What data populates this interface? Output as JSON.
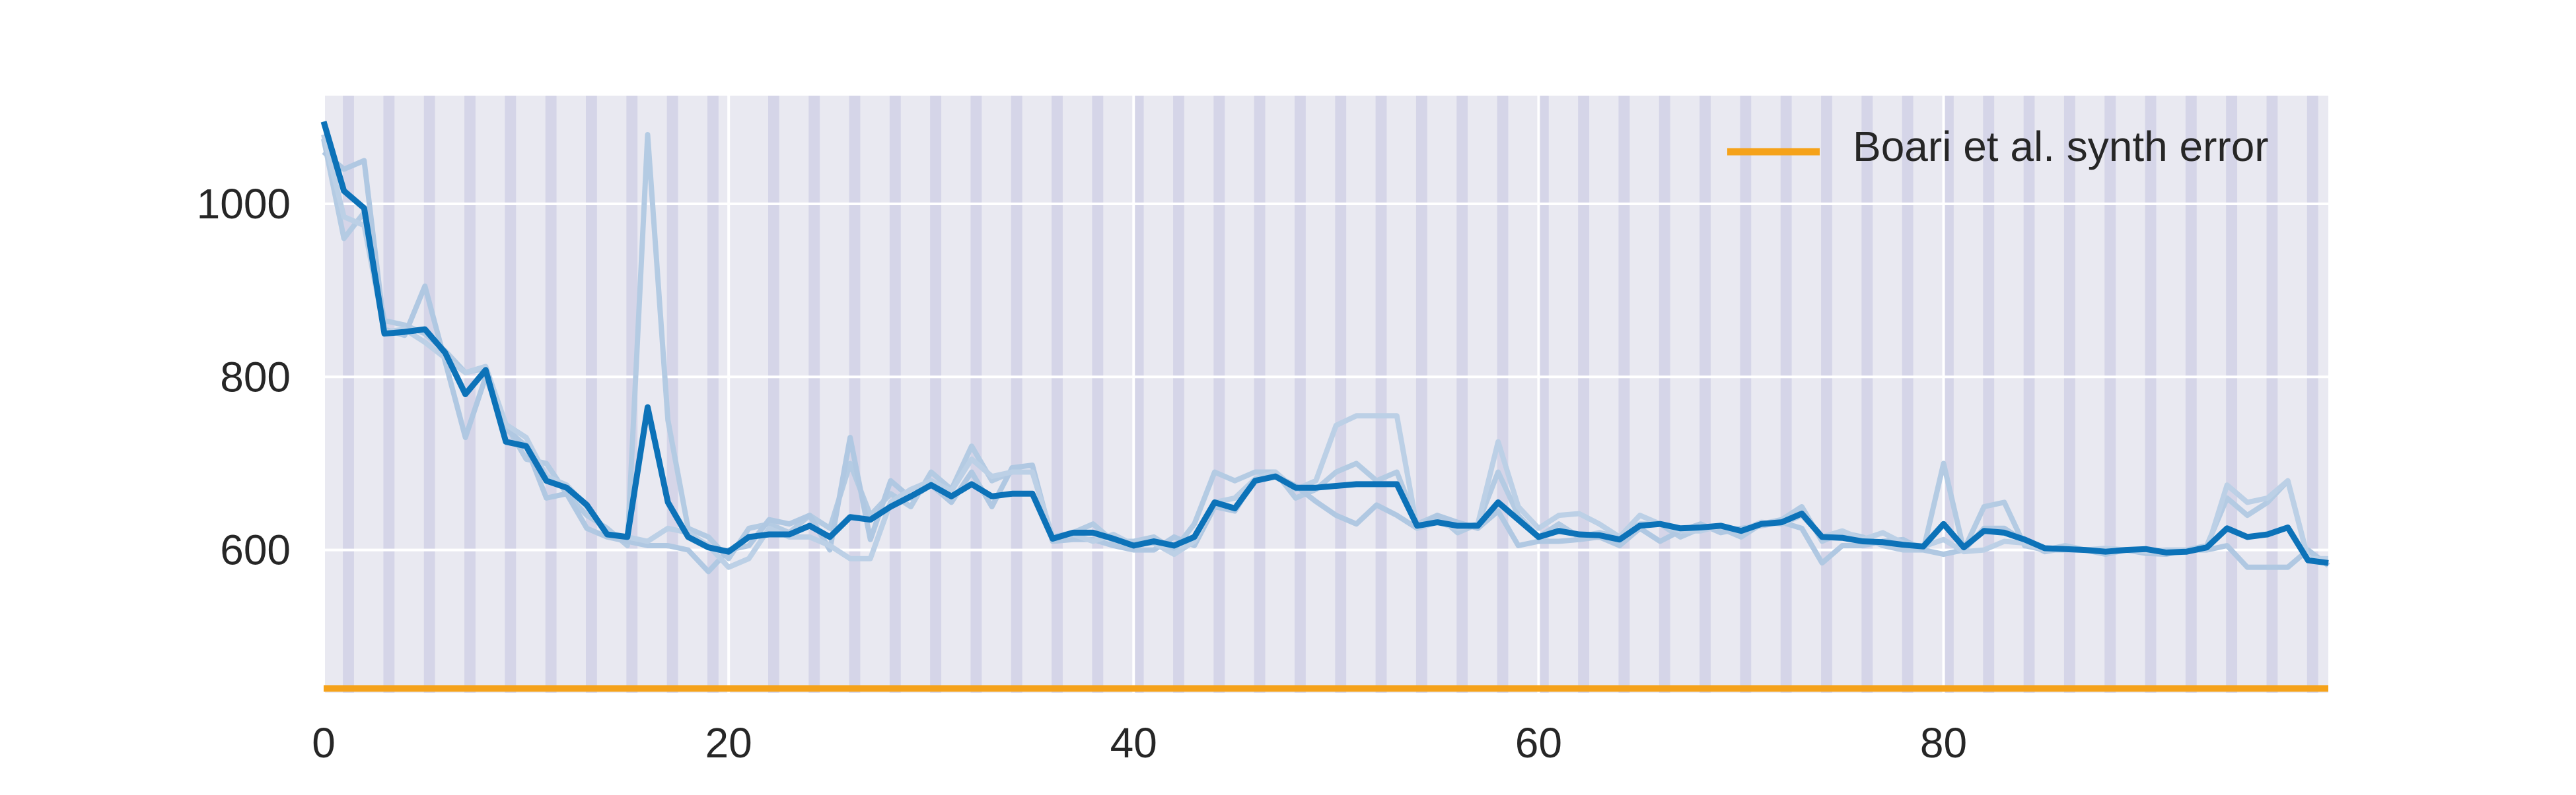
{
  "chart_data": {
    "type": "line",
    "title": "",
    "xlabel": "",
    "ylabel": "",
    "xlim": [
      0,
      99
    ],
    "ylim": [
      435,
      1125
    ],
    "x_ticks": [
      0,
      20,
      40,
      60,
      80
    ],
    "y_ticks": [
      600,
      800,
      1000
    ],
    "grid": true,
    "stripe_band_starts": [
      1,
      3,
      5,
      7,
      9,
      11,
      13,
      15,
      17,
      19,
      22,
      24,
      26,
      28,
      30,
      32,
      34,
      36,
      38,
      40,
      42,
      44,
      46,
      48,
      50,
      52,
      54,
      56,
      58,
      60,
      62,
      64,
      66,
      68,
      70,
      72,
      74,
      76,
      78,
      80,
      82,
      84,
      86,
      88,
      90,
      92,
      94,
      96,
      98
    ],
    "x": [
      0,
      1,
      2,
      3,
      4,
      5,
      6,
      7,
      8,
      9,
      10,
      11,
      12,
      13,
      14,
      15,
      16,
      17,
      18,
      19,
      20,
      21,
      22,
      23,
      24,
      25,
      26,
      27,
      28,
      29,
      30,
      31,
      32,
      33,
      34,
      35,
      36,
      37,
      38,
      39,
      40,
      41,
      42,
      43,
      44,
      45,
      46,
      47,
      48,
      49,
      50,
      51,
      52,
      53,
      54,
      55,
      56,
      57,
      58,
      59,
      60,
      61,
      62,
      63,
      64,
      65,
      66,
      67,
      68,
      69,
      70,
      71,
      72,
      73,
      74,
      75,
      76,
      77,
      78,
      79,
      80,
      81,
      82,
      83,
      84,
      85,
      86,
      87,
      88,
      89,
      90,
      91,
      92,
      93,
      94,
      95,
      96,
      97,
      98,
      99
    ],
    "series": [
      {
        "values": [
          1095,
          1015,
          995,
          850,
          852,
          855,
          828,
          780,
          808,
          725,
          720,
          680,
          672,
          652,
          618,
          615,
          765,
          655,
          615,
          603,
          598,
          615,
          618,
          618,
          628,
          615,
          638,
          635,
          650,
          662,
          675,
          662,
          676,
          662,
          665,
          665,
          613,
          620,
          620,
          613,
          605,
          610,
          605,
          615,
          655,
          648,
          680,
          685,
          672,
          672,
          674,
          676,
          676,
          676,
          628,
          632,
          628,
          628,
          655,
          635,
          615,
          622,
          618,
          617,
          612,
          628,
          630,
          625,
          626,
          628,
          622,
          630,
          632,
          642,
          615,
          614,
          610,
          609,
          606,
          604,
          630,
          603,
          622,
          620,
          612,
          602,
          601,
          600,
          598,
          600,
          601,
          597,
          598,
          603,
          625,
          615,
          618,
          626,
          588,
          585
        ],
        "color": "#0c72b8"
      },
      {
        "values": [
          1075,
          960,
          990,
          865,
          860,
          850,
          830,
          805,
          810,
          745,
          705,
          700,
          665,
          640,
          625,
          605,
          1080,
          750,
          625,
          615,
          590,
          625,
          630,
          620,
          640,
          625,
          700,
          640,
          665,
          650,
          690,
          670,
          720,
          680,
          690,
          690,
          615,
          620,
          630,
          610,
          610,
          615,
          600,
          630,
          690,
          680,
          690,
          690,
          660,
          670,
          690,
          700,
          680,
          690,
          630,
          640,
          620,
          630,
          690,
          640,
          615,
          630,
          615,
          620,
          615,
          630,
          630,
          615,
          625,
          625,
          615,
          630,
          635,
          650,
          610,
          620,
          615,
          605,
          600,
          600,
          700,
          600,
          650,
          655,
          605,
          600,
          605,
          600,
          595,
          600,
          598,
          598,
          600,
          605,
          660,
          640,
          655,
          680,
          590,
          585
        ],
        "color": "#b4cbe3"
      },
      {
        "values": [
          1060,
          1040,
          1050,
          855,
          848,
          905,
          818,
          730,
          800,
          740,
          720,
          660,
          665,
          625,
          615,
          610,
          605,
          605,
          600,
          575,
          600,
          605,
          635,
          630,
          640,
          600,
          730,
          612,
          680,
          660,
          675,
          655,
          690,
          650,
          695,
          698,
          610,
          612,
          612,
          605,
          600,
          600,
          615,
          605,
          650,
          645,
          682,
          686,
          674,
          656,
          640,
          630,
          652,
          640,
          625,
          640,
          632,
          625,
          645,
          605,
          610,
          610,
          612,
          615,
          605,
          625,
          610,
          622,
          630,
          620,
          625,
          628,
          632,
          625,
          585,
          605,
          605,
          610,
          612,
          600,
          595,
          600,
          625,
          625,
          610,
          598,
          602,
          600,
          598,
          600,
          596,
          595,
          600,
          600,
          605,
          580,
          580,
          580,
          600,
          582
        ],
        "color": "#b0c8e2"
      },
      {
        "values": [
          1080,
          985,
          975,
          852,
          855,
          840,
          822,
          805,
          812,
          745,
          730,
          685,
          675,
          650,
          620,
          615,
          610,
          625,
          620,
          605,
          580,
          590,
          625,
          615,
          615,
          605,
          590,
          590,
          655,
          670,
          680,
          668,
          705,
          685,
          690,
          690,
          614,
          618,
          610,
          618,
          606,
          608,
          595,
          610,
          655,
          660,
          682,
          690,
          670,
          680,
          744,
          755,
          755,
          755,
          625,
          632,
          625,
          630,
          725,
          650,
          625,
          640,
          642,
          630,
          615,
          640,
          630,
          622,
          622,
          628,
          622,
          632,
          630,
          640,
          615,
          622,
          612,
          620,
          608,
          604,
          612,
          598,
          600,
          610,
          608,
          600,
          600,
          600,
          602,
          600,
          598,
          600,
          600,
          600,
          675,
          655,
          660,
          680,
          590,
          590
        ],
        "color": "#bcd0e6"
      }
    ],
    "reference_line": {
      "label": "Boari et al. synth error",
      "value": 440,
      "color": "#f5a21a"
    },
    "legend": {
      "position": "top-right",
      "entries": [
        "Boari et al. synth error"
      ]
    },
    "colors": {
      "plot_background": "#e9e9f1",
      "stripe": "#d5d5e8",
      "grid": "#ffffff"
    }
  }
}
